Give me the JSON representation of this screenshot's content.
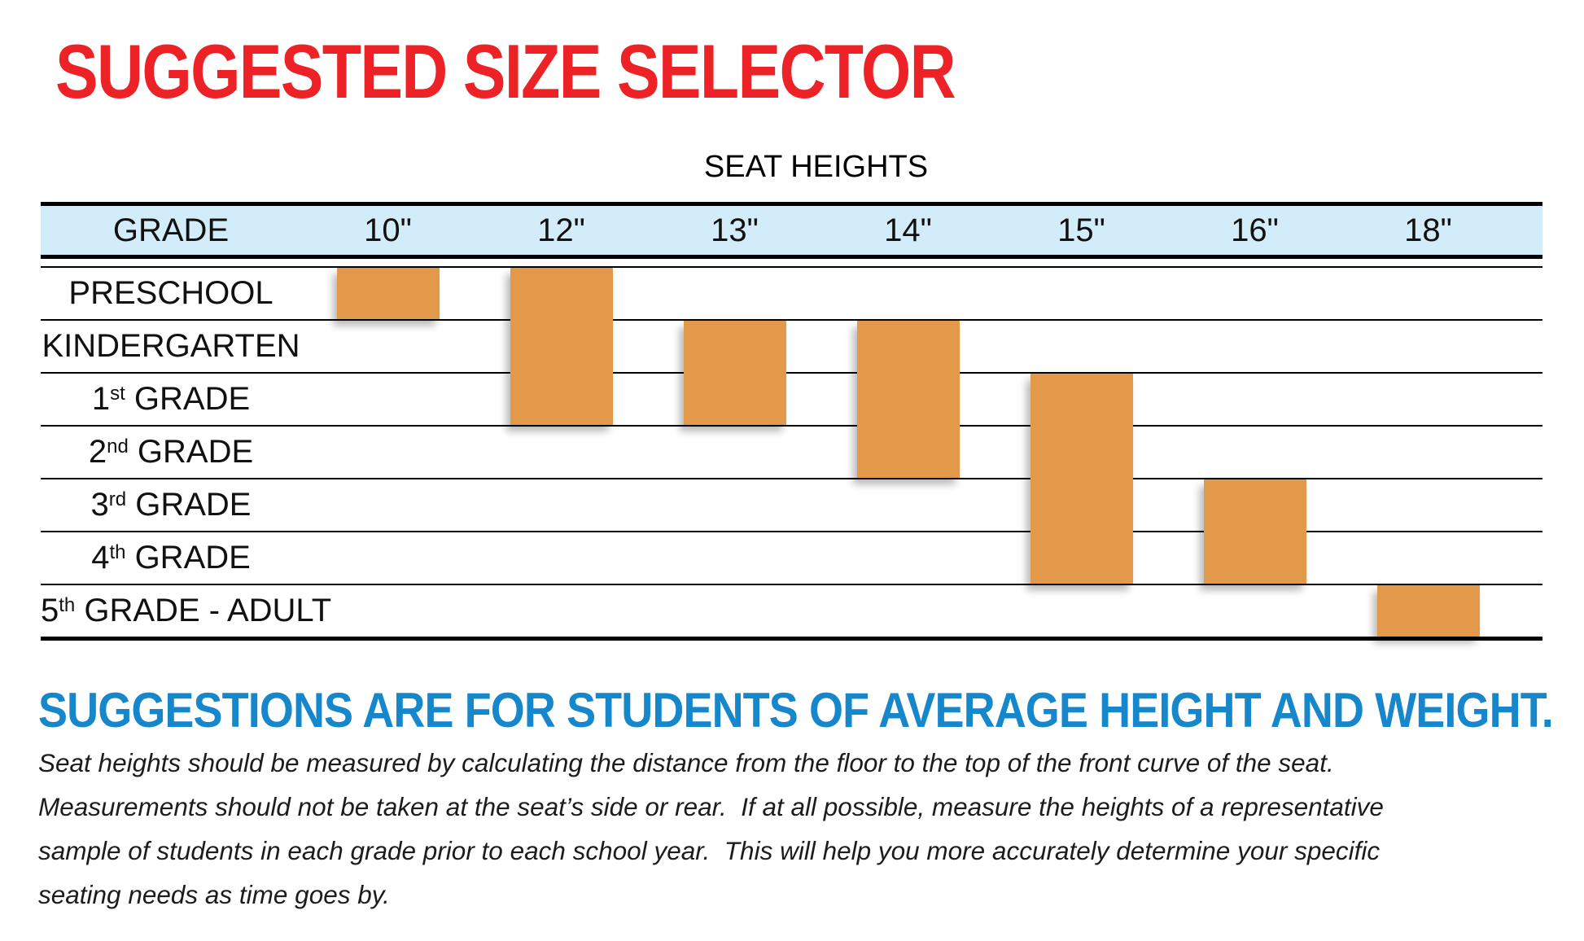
{
  "title": "SUGGESTED SIZE SELECTOR",
  "colors": {
    "title_red": "#EC2227",
    "heading_blue": "#1787CB",
    "header_row_bg": "#D3ECF9",
    "bar_orange": "#E2994A",
    "line_black": "#000000"
  },
  "chart_data": {
    "type": "table",
    "title": "SUGGESTED SIZE SELECTOR",
    "column_group_label": "SEAT HEIGHTS",
    "row_header_label": "GRADE",
    "columns": [
      "10\"",
      "12\"",
      "13\"",
      "14\"",
      "15\"",
      "16\"",
      "18\""
    ],
    "rows": [
      {
        "label": "PRESCHOOL",
        "prefix": "PRESCHOOL",
        "sup": "",
        "suffix": ""
      },
      {
        "label": "KINDERGARTEN",
        "prefix": "KINDERGARTEN",
        "sup": "",
        "suffix": ""
      },
      {
        "label": "1st GRADE",
        "prefix": "1",
        "sup": "st",
        "suffix": " GRADE"
      },
      {
        "label": "2nd GRADE",
        "prefix": "2",
        "sup": "nd",
        "suffix": " GRADE"
      },
      {
        "label": "3rd GRADE",
        "prefix": "3",
        "sup": "rd",
        "suffix": " GRADE"
      },
      {
        "label": "4th GRADE",
        "prefix": "4",
        "sup": "th",
        "suffix": " GRADE"
      },
      {
        "label": "5th GRADE - ADULT",
        "prefix": "5",
        "sup": "th",
        "suffix": " GRADE - ADULT"
      }
    ],
    "ranges": [
      {
        "column": "10\"",
        "col_index": 0,
        "first_row": 0,
        "last_row": 0,
        "grades": [
          "PRESCHOOL"
        ]
      },
      {
        "column": "12\"",
        "col_index": 1,
        "first_row": 0,
        "last_row": 2,
        "grades": [
          "PRESCHOOL",
          "KINDERGARTEN",
          "1st GRADE"
        ]
      },
      {
        "column": "13\"",
        "col_index": 2,
        "first_row": 1,
        "last_row": 2,
        "grades": [
          "KINDERGARTEN",
          "1st GRADE"
        ]
      },
      {
        "column": "14\"",
        "col_index": 3,
        "first_row": 1,
        "last_row": 3,
        "grades": [
          "KINDERGARTEN",
          "1st GRADE",
          "2nd GRADE"
        ]
      },
      {
        "column": "15\"",
        "col_index": 4,
        "first_row": 2,
        "last_row": 5,
        "grades": [
          "1st GRADE",
          "2nd GRADE",
          "3rd GRADE",
          "4th GRADE"
        ]
      },
      {
        "column": "16\"",
        "col_index": 5,
        "first_row": 4,
        "last_row": 5,
        "grades": [
          "3rd GRADE",
          "4th GRADE"
        ]
      },
      {
        "column": "18\"",
        "col_index": 6,
        "first_row": 6,
        "last_row": 6,
        "grades": [
          "5th GRADE - ADULT"
        ]
      }
    ],
    "grid": true,
    "legend": "none"
  },
  "footer": {
    "heading": "SUGGESTIONS ARE FOR STUDENTS OF AVERAGE HEIGHT AND WEIGHT.",
    "paragraph_lines": [
      "Seat heights should be measured by calculating the distance from the floor to the top of the front curve of the seat.",
      "Measurements should not be taken at the seat’s side or rear.  If at all possible, measure the heights of a representative",
      "sample of students in each grade prior to each school year.  This will help you more accurately determine your specific",
      "seating needs as time goes by."
    ]
  }
}
